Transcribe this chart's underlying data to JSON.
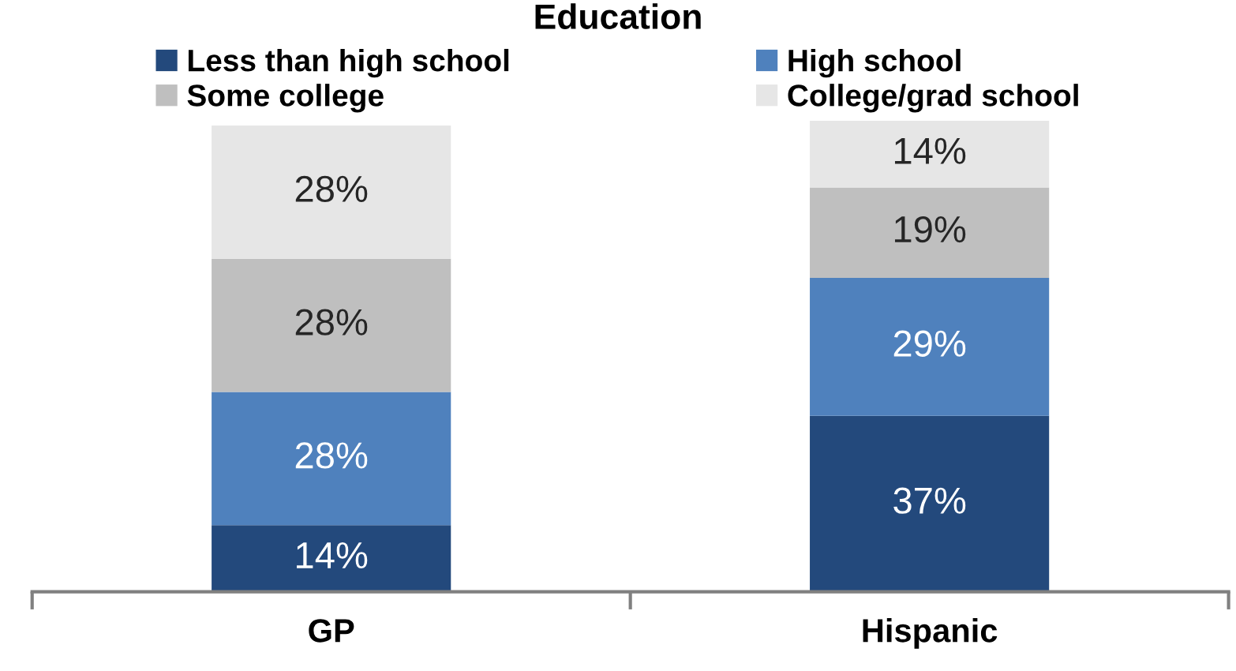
{
  "chart_data": {
    "type": "bar",
    "title": "Education",
    "stacked": true,
    "legend": "top",
    "grid": false,
    "categories": [
      "GP",
      "Hispanic"
    ],
    "series": [
      {
        "name": "Less than high school",
        "color": "#23497c",
        "values": [
          14,
          37
        ],
        "value_labels": [
          "14%",
          "37%"
        ]
      },
      {
        "name": "High school",
        "color": "#4f81bd",
        "values": [
          28,
          29
        ],
        "value_labels": [
          "28%",
          "29%"
        ]
      },
      {
        "name": "Some college",
        "color": "#bfbfbf",
        "values": [
          28,
          19
        ],
        "value_labels": [
          "28%",
          "19%"
        ]
      },
      {
        "name": "College/grad school",
        "color": "#e6e6e6",
        "values": [
          28,
          14
        ],
        "value_labels": [
          "28%",
          "14%"
        ]
      }
    ]
  }
}
